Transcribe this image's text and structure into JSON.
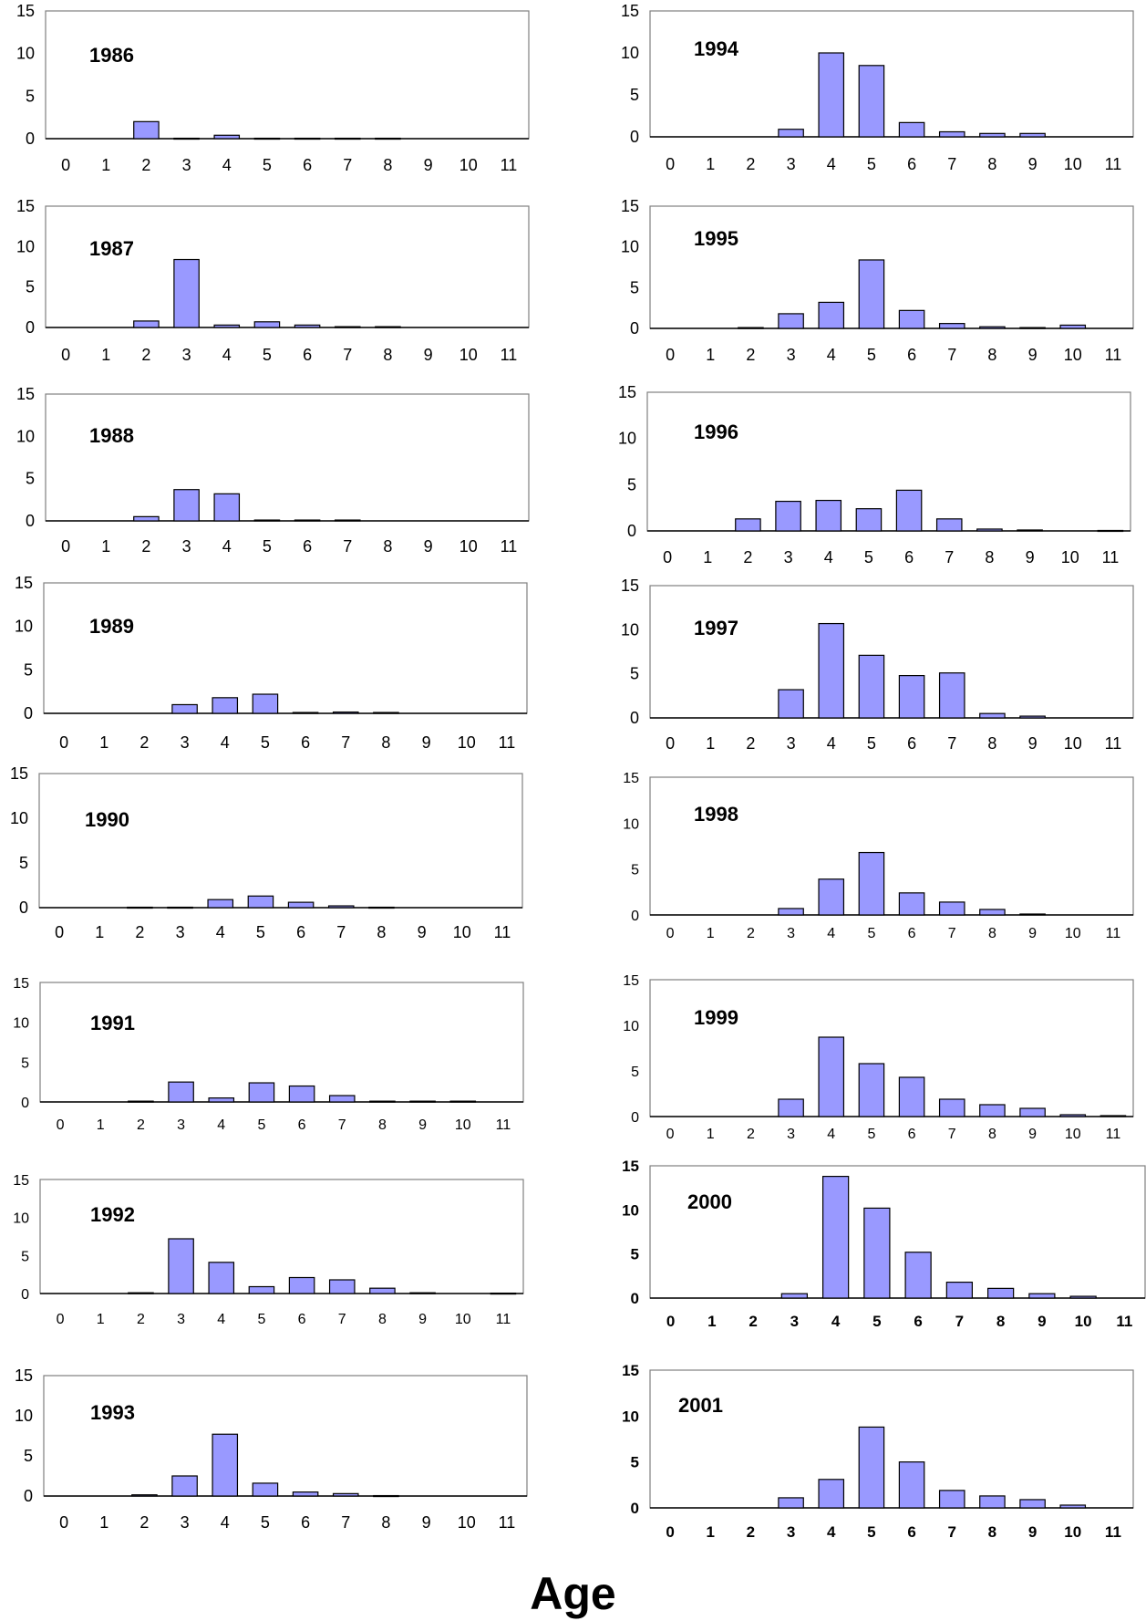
{
  "figure": {
    "xlabel": "Age"
  },
  "chart_data": [
    {
      "type": "bar",
      "title": "1986",
      "categories": [
        "0",
        "1",
        "2",
        "3",
        "4",
        "5",
        "6",
        "7",
        "8",
        "9",
        "10",
        "11"
      ],
      "values": [
        0,
        0,
        2.0,
        0.05,
        0.4,
        0.05,
        0.05,
        0.05,
        0.05,
        0,
        0,
        0
      ],
      "ylim": [
        0,
        15
      ],
      "yticks": [
        "0",
        "5",
        "10",
        "15"
      ]
    },
    {
      "type": "bar",
      "title": "1987",
      "categories": [
        "0",
        "1",
        "2",
        "3",
        "4",
        "5",
        "6",
        "7",
        "8",
        "9",
        "10",
        "11"
      ],
      "values": [
        0,
        0,
        0.8,
        8.4,
        0.3,
        0.7,
        0.3,
        0.1,
        0.1,
        0,
        0,
        0
      ],
      "ylim": [
        0,
        15
      ],
      "yticks": [
        "0",
        "5",
        "10",
        "15"
      ]
    },
    {
      "type": "bar",
      "title": "1988",
      "categories": [
        "0",
        "1",
        "2",
        "3",
        "4",
        "5",
        "6",
        "7",
        "8",
        "9",
        "10",
        "11"
      ],
      "values": [
        0,
        0,
        0.5,
        3.7,
        3.2,
        0.1,
        0.1,
        0.1,
        0,
        0,
        0,
        0
      ],
      "ylim": [
        0,
        15
      ],
      "yticks": [
        "0",
        "5",
        "10",
        "15"
      ]
    },
    {
      "type": "bar",
      "title": "1989",
      "categories": [
        "0",
        "1",
        "2",
        "3",
        "4",
        "5",
        "6",
        "7",
        "8",
        "9",
        "10",
        "11"
      ],
      "values": [
        0,
        0,
        0,
        1.0,
        1.8,
        2.2,
        0.1,
        0.15,
        0.1,
        0,
        0,
        0
      ],
      "ylim": [
        0,
        15
      ],
      "yticks": [
        "0",
        "5",
        "10",
        "15"
      ]
    },
    {
      "type": "bar",
      "title": "1990",
      "categories": [
        "0",
        "1",
        "2",
        "3",
        "4",
        "5",
        "6",
        "7",
        "8",
        "9",
        "10",
        "11"
      ],
      "values": [
        0,
        0,
        0.05,
        0.05,
        0.9,
        1.3,
        0.6,
        0.2,
        0.05,
        0,
        0,
        0
      ],
      "ylim": [
        0,
        15
      ],
      "yticks": [
        "0",
        "5",
        "10",
        "15"
      ]
    },
    {
      "type": "bar",
      "title": "1991",
      "categories": [
        "0",
        "1",
        "2",
        "3",
        "4",
        "5",
        "6",
        "7",
        "8",
        "9",
        "10",
        "11"
      ],
      "values": [
        0,
        0,
        0.1,
        2.5,
        0.5,
        2.4,
        2.0,
        0.8,
        0.1,
        0.1,
        0.1,
        0
      ],
      "ylim": [
        0,
        15
      ],
      "yticks": [
        "0",
        "5",
        "10",
        "15"
      ]
    },
    {
      "type": "bar",
      "title": "1992",
      "categories": [
        "0",
        "1",
        "2",
        "3",
        "4",
        "5",
        "6",
        "7",
        "8",
        "9",
        "10",
        "11"
      ],
      "values": [
        0,
        0,
        0.1,
        7.2,
        4.1,
        0.9,
        2.1,
        1.8,
        0.7,
        0.1,
        0,
        0.05
      ],
      "ylim": [
        0,
        15
      ],
      "yticks": [
        "0",
        "5",
        "10",
        "15"
      ]
    },
    {
      "type": "bar",
      "title": "1993",
      "categories": [
        "0",
        "1",
        "2",
        "3",
        "4",
        "5",
        "6",
        "7",
        "8",
        "9",
        "10",
        "11"
      ],
      "values": [
        0,
        0,
        0.15,
        2.5,
        7.7,
        1.6,
        0.5,
        0.3,
        0.05,
        0,
        0,
        0
      ],
      "ylim": [
        0,
        15
      ],
      "yticks": [
        "0",
        "5",
        "10",
        "15"
      ]
    },
    {
      "type": "bar",
      "title": "1994",
      "categories": [
        "0",
        "1",
        "2",
        "3",
        "4",
        "5",
        "6",
        "7",
        "8",
        "9",
        "10",
        "11"
      ],
      "values": [
        0,
        0,
        0,
        0.9,
        10.0,
        8.5,
        1.7,
        0.6,
        0.4,
        0.4,
        0,
        0
      ],
      "ylim": [
        0,
        15
      ],
      "yticks": [
        "0",
        "5",
        "10",
        "15"
      ]
    },
    {
      "type": "bar",
      "title": "1995",
      "categories": [
        "0",
        "1",
        "2",
        "3",
        "4",
        "5",
        "6",
        "7",
        "8",
        "9",
        "10",
        "11"
      ],
      "values": [
        0,
        0,
        0.1,
        1.8,
        3.2,
        8.4,
        2.2,
        0.6,
        0.2,
        0.1,
        0.4,
        0
      ],
      "ylim": [
        0,
        15
      ],
      "yticks": [
        "0",
        "5",
        "10",
        "15"
      ]
    },
    {
      "type": "bar",
      "title": "1996",
      "categories": [
        "0",
        "1",
        "2",
        "3",
        "4",
        "5",
        "6",
        "7",
        "8",
        "9",
        "10",
        "11"
      ],
      "values": [
        0,
        0,
        1.3,
        3.2,
        3.3,
        2.4,
        4.4,
        1.3,
        0.2,
        0.1,
        0,
        0.05
      ],
      "ylim": [
        0,
        15
      ],
      "yticks": [
        "0",
        "5",
        "10",
        "15"
      ]
    },
    {
      "type": "bar",
      "title": "1997",
      "categories": [
        "0",
        "1",
        "2",
        "3",
        "4",
        "5",
        "6",
        "7",
        "8",
        "9",
        "10",
        "11"
      ],
      "values": [
        0,
        0,
        0,
        3.2,
        10.7,
        7.1,
        4.8,
        5.1,
        0.5,
        0.2,
        0,
        0
      ],
      "ylim": [
        0,
        15
      ],
      "yticks": [
        "0",
        "5",
        "10",
        "15"
      ]
    },
    {
      "type": "bar",
      "title": "1998",
      "categories": [
        "0",
        "1",
        "2",
        "3",
        "4",
        "5",
        "6",
        "7",
        "8",
        "9",
        "10",
        "11"
      ],
      "values": [
        0,
        0,
        0,
        0.7,
        3.9,
        6.8,
        2.4,
        1.4,
        0.6,
        0.1,
        0,
        0
      ],
      "ylim": [
        0,
        15
      ],
      "yticks": [
        "0",
        "5",
        "10",
        "15"
      ]
    },
    {
      "type": "bar",
      "title": "1999",
      "categories": [
        "0",
        "1",
        "2",
        "3",
        "4",
        "5",
        "6",
        "7",
        "8",
        "9",
        "10",
        "11"
      ],
      "values": [
        0,
        0,
        0,
        1.9,
        8.7,
        5.8,
        4.3,
        1.9,
        1.3,
        0.9,
        0.2,
        0.1
      ],
      "ylim": [
        0,
        15
      ],
      "yticks": [
        "0",
        "5",
        "10",
        "15"
      ]
    },
    {
      "type": "bar",
      "title": "2000",
      "categories": [
        "0",
        "1",
        "2",
        "3",
        "4",
        "5",
        "6",
        "7",
        "8",
        "9",
        "10",
        "11"
      ],
      "values": [
        0,
        0,
        0,
        0.5,
        13.8,
        10.2,
        5.2,
        1.8,
        1.1,
        0.5,
        0.2,
        0
      ],
      "ylim": [
        0,
        15
      ],
      "yticks": [
        "0",
        "5",
        "10",
        "15"
      ]
    },
    {
      "type": "bar",
      "title": "2001",
      "categories": [
        "0",
        "1",
        "2",
        "3",
        "4",
        "5",
        "6",
        "7",
        "8",
        "9",
        "10",
        "11"
      ],
      "values": [
        0,
        0,
        0,
        1.1,
        3.1,
        8.8,
        5.0,
        1.9,
        1.3,
        0.9,
        0.3,
        0
      ],
      "ylim": [
        0,
        15
      ],
      "yticks": [
        "0",
        "5",
        "10",
        "15"
      ]
    }
  ],
  "colors": {
    "bar_fill": "#9999ff",
    "bar_stroke": "#000000",
    "frame": "#808080",
    "axis": "#000000"
  }
}
